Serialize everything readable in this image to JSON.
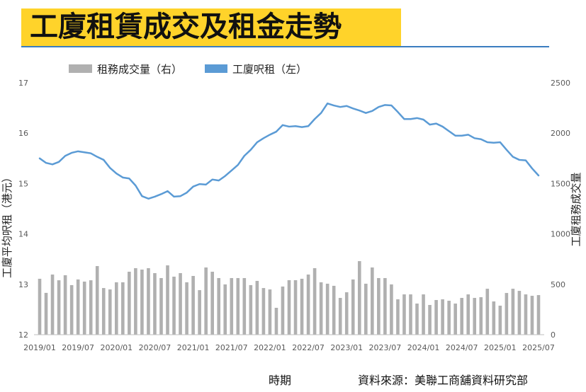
{
  "colors": {
    "title_background": "#ffd32a",
    "title_text": "#111111",
    "title_rule": "#3b7dc0",
    "bar": "#b0b0b0",
    "line": "#5b9bd5",
    "axis": "#bfbfbf",
    "tick_text": "#595959"
  },
  "chart_data": {
    "type": "bar",
    "title": "工廈租賃成交及租金走勢",
    "xlabel": "時期",
    "ylabel": "工廈平均呎租（港元）",
    "y2label": "工廈租務成交量",
    "source": "資料來源：美聯工商舖資料研究部",
    "legend": "top-left",
    "grid": false,
    "ylim": [
      12,
      17
    ],
    "yticks": [
      12,
      13,
      14,
      15,
      16,
      17
    ],
    "y2lim": [
      0,
      2500
    ],
    "y2ticks": [
      0,
      500,
      1000,
      1500,
      2000,
      2500
    ],
    "xticks": [
      "2019/01",
      "2019/07",
      "2020/01",
      "2020/07",
      "2021/01",
      "2021/07",
      "2022/01",
      "2022/07",
      "2023/01",
      "2023/07",
      "2024/01",
      "2024/07",
      "2025/01",
      "2025/07"
    ],
    "x": [
      "2019/01",
      "2019/02",
      "2019/03",
      "2019/04",
      "2019/05",
      "2019/06",
      "2019/07",
      "2019/08",
      "2019/09",
      "2019/10",
      "2019/11",
      "2019/12",
      "2020/01",
      "2020/02",
      "2020/03",
      "2020/04",
      "2020/05",
      "2020/06",
      "2020/07",
      "2020/08",
      "2020/09",
      "2020/10",
      "2020/11",
      "2020/12",
      "2021/01",
      "2021/02",
      "2021/03",
      "2021/04",
      "2021/05",
      "2021/06",
      "2021/07",
      "2021/08",
      "2021/09",
      "2021/10",
      "2021/11",
      "2021/12",
      "2022/01",
      "2022/02",
      "2022/03",
      "2022/04",
      "2022/05",
      "2022/06",
      "2022/07",
      "2022/08",
      "2022/09",
      "2022/10",
      "2022/11",
      "2022/12",
      "2023/01",
      "2023/02",
      "2023/03",
      "2023/04",
      "2023/05",
      "2023/06",
      "2023/07",
      "2023/08",
      "2023/09",
      "2023/10",
      "2023/11",
      "2023/12",
      "2024/01",
      "2024/02",
      "2024/03",
      "2024/04",
      "2024/05",
      "2024/06",
      "2024/07",
      "2024/08",
      "2024/09",
      "2024/10",
      "2024/11",
      "2024/12",
      "2025/01",
      "2025/02",
      "2025/03",
      "2025/04",
      "2025/05",
      "2025/06",
      "2025/07"
    ],
    "series": [
      {
        "name": "租務成交量（右）",
        "type": "bar",
        "axis": "right",
        "values": [
          555,
          415,
          597,
          540,
          590,
          492,
          548,
          527,
          540,
          681,
          463,
          449,
          520,
          520,
          625,
          660,
          646,
          660,
          611,
          562,
          688,
          576,
          611,
          520,
          583,
          442,
          667,
          625,
          562,
          499,
          562,
          562,
          562,
          492,
          534,
          463,
          449,
          267,
          478,
          541,
          541,
          555,
          597,
          660,
          520,
          506,
          485,
          365,
          421,
          548,
          730,
          506,
          667,
          562,
          562,
          499,
          351,
          400,
          400,
          309,
          400,
          295,
          344,
          351,
          337,
          309,
          365,
          400,
          365,
          372,
          456,
          330,
          288,
          414,
          456,
          435,
          400,
          386,
          393
        ]
      },
      {
        "name": "工廈呎租（左）",
        "type": "line",
        "axis": "left",
        "values": [
          15.5,
          15.41,
          15.38,
          15.43,
          15.55,
          15.61,
          15.64,
          15.62,
          15.6,
          15.53,
          15.47,
          15.31,
          15.2,
          15.12,
          15.1,
          14.96,
          14.75,
          14.7,
          14.74,
          14.79,
          14.85,
          14.74,
          14.75,
          14.82,
          14.94,
          14.99,
          14.98,
          15.08,
          15.06,
          15.15,
          15.26,
          15.37,
          15.55,
          15.67,
          15.82,
          15.9,
          15.97,
          16.03,
          16.16,
          16.13,
          16.14,
          16.12,
          16.14,
          16.28,
          16.4,
          16.59,
          16.55,
          16.52,
          16.54,
          16.49,
          16.45,
          16.4,
          16.44,
          16.52,
          16.56,
          16.55,
          16.42,
          16.28,
          16.28,
          16.3,
          16.27,
          16.17,
          16.19,
          16.13,
          16.04,
          15.95,
          15.95,
          15.97,
          15.9,
          15.88,
          15.82,
          15.81,
          15.82,
          15.67,
          15.53,
          15.47,
          15.46,
          15.3,
          15.16
        ]
      }
    ]
  }
}
